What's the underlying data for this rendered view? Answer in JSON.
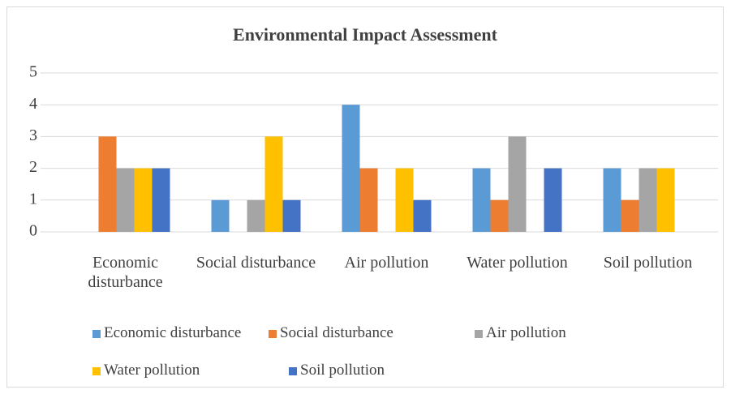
{
  "chart_data": {
    "type": "bar",
    "title": "Environmental Impact Assessment",
    "categories": [
      "Economic disturbance",
      "Social disturbance",
      "Air pollution",
      "Water pollution",
      "Soil pollution"
    ],
    "series": [
      {
        "name": "Economic disturbance",
        "color": "#5b9bd5",
        "values": [
          0,
          1,
          4,
          2,
          2
        ]
      },
      {
        "name": "Social disturbance",
        "color": "#ed7d31",
        "values": [
          3,
          0,
          2,
          1,
          1
        ]
      },
      {
        "name": "Air pollution",
        "color": "#a5a5a5",
        "values": [
          2,
          1,
          0,
          3,
          2
        ]
      },
      {
        "name": "Water pollution",
        "color": "#ffc000",
        "values": [
          2,
          3,
          2,
          0,
          2
        ]
      },
      {
        "name": "Soil pollution",
        "color": "#4472c4",
        "values": [
          2,
          1,
          1,
          2,
          0
        ]
      }
    ],
    "ylim": [
      0,
      5
    ],
    "yticks": [
      0,
      1,
      2,
      3,
      4,
      5
    ],
    "grid": true,
    "legend": "bottom"
  }
}
